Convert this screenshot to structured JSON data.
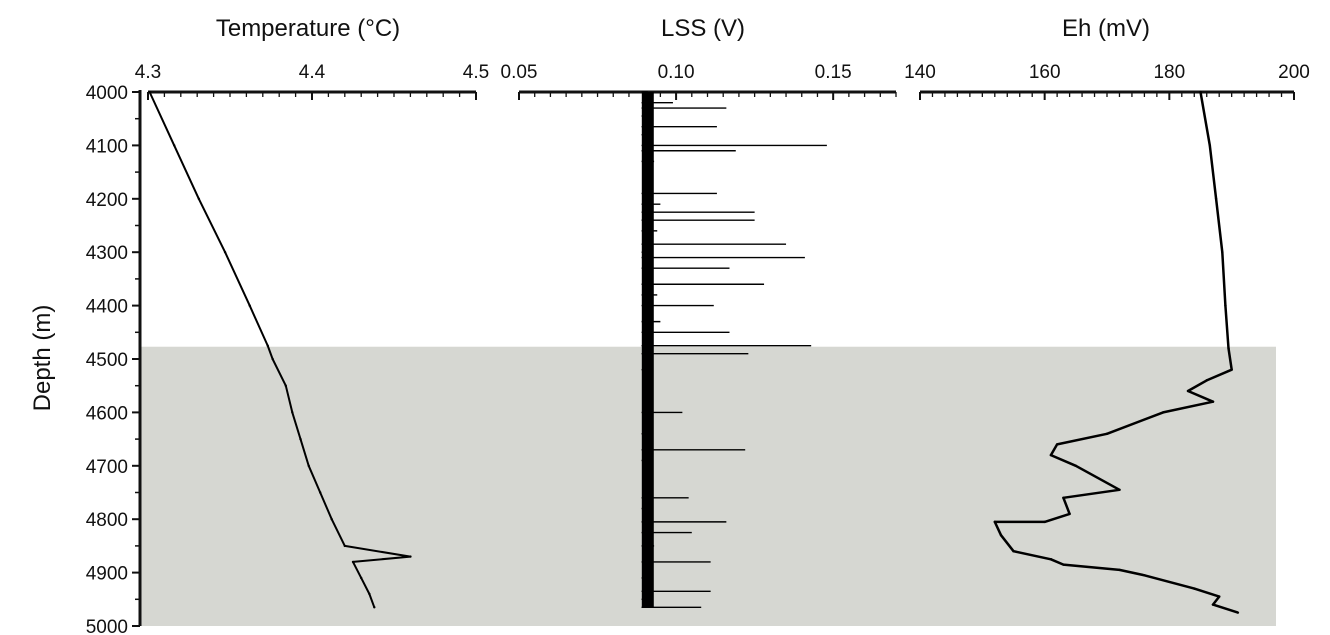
{
  "chart_data": {
    "type": "line",
    "shared_y": {
      "label": "Depth (m)",
      "ticks": [
        4000,
        4100,
        4200,
        4300,
        4400,
        4500,
        4600,
        4700,
        4800,
        4900,
        5000
      ],
      "range": [
        4000,
        5000
      ],
      "inverted": true
    },
    "shaded_region": {
      "from_depth": 4477,
      "to_depth": 5000,
      "color": "#d6d7d2"
    },
    "panels": [
      {
        "title": "Temperature (°C)",
        "xlim": [
          4.3,
          4.5
        ],
        "xticks": [
          "4.3",
          "4.4",
          "4.5"
        ],
        "series": [
          {
            "points": [
              [
                4.301,
                4000
              ],
              [
                4.316,
                4100
              ],
              [
                4.331,
                4200
              ],
              [
                4.347,
                4300
              ],
              [
                4.362,
                4400
              ],
              [
                4.373,
                4475
              ],
              [
                4.376,
                4500
              ],
              [
                4.384,
                4550
              ],
              [
                4.388,
                4600
              ],
              [
                4.393,
                4650
              ],
              [
                4.398,
                4700
              ],
              [
                4.405,
                4750
              ],
              [
                4.412,
                4800
              ],
              [
                4.42,
                4850
              ],
              [
                4.46,
                4870
              ],
              [
                4.425,
                4880
              ],
              [
                4.43,
                4910
              ],
              [
                4.435,
                4940
              ],
              [
                4.438,
                4965
              ]
            ]
          }
        ]
      },
      {
        "title": "LSS (V)",
        "xlim": [
          0.05,
          0.17
        ],
        "xticks": [
          "0.05",
          "0.10",
          "0.15"
        ],
        "series": [
          {
            "points": [
              [
                0.091,
                4000
              ],
              [
                0.099,
                4020
              ],
              [
                0.116,
                4030
              ],
              [
                0.092,
                4045
              ],
              [
                0.113,
                4065
              ],
              [
                0.091,
                4080
              ],
              [
                0.148,
                4100
              ],
              [
                0.119,
                4110
              ],
              [
                0.093,
                4130
              ],
              [
                0.113,
                4190
              ],
              [
                0.095,
                4210
              ],
              [
                0.125,
                4225
              ],
              [
                0.125,
                4240
              ],
              [
                0.094,
                4260
              ],
              [
                0.135,
                4285
              ],
              [
                0.092,
                4300
              ],
              [
                0.141,
                4310
              ],
              [
                0.117,
                4330
              ],
              [
                0.128,
                4360
              ],
              [
                0.094,
                4380
              ],
              [
                0.112,
                4400
              ],
              [
                0.095,
                4430
              ],
              [
                0.117,
                4450
              ],
              [
                0.143,
                4475
              ],
              [
                0.123,
                4490
              ],
              [
                0.091,
                4520
              ],
              [
                0.102,
                4600
              ],
              [
                0.092,
                4640
              ],
              [
                0.122,
                4670
              ],
              [
                0.091,
                4690
              ],
              [
                0.104,
                4760
              ],
              [
                0.092,
                4780
              ],
              [
                0.116,
                4805
              ],
              [
                0.105,
                4825
              ],
              [
                0.093,
                4850
              ],
              [
                0.111,
                4880
              ],
              [
                0.091,
                4910
              ],
              [
                0.111,
                4935
              ],
              [
                0.092,
                4950
              ],
              [
                0.108,
                4965
              ]
            ]
          }
        ]
      },
      {
        "title": "Eh (mV)",
        "xlim": [
          140,
          200
        ],
        "xticks": [
          "140",
          "160",
          "180",
          "200"
        ],
        "series": [
          {
            "points": [
              [
                185,
                4000
              ],
              [
                186.5,
                4100
              ],
              [
                187.5,
                4200
              ],
              [
                188.5,
                4300
              ],
              [
                189.0,
                4400
              ],
              [
                189.5,
                4480
              ],
              [
                190.0,
                4520
              ],
              [
                186.0,
                4540
              ],
              [
                183.0,
                4560
              ],
              [
                187.0,
                4580
              ],
              [
                179.0,
                4600
              ],
              [
                170.0,
                4640
              ],
              [
                162.0,
                4660
              ],
              [
                161.0,
                4680
              ],
              [
                165.0,
                4700
              ],
              [
                172.0,
                4745
              ],
              [
                163.0,
                4760
              ],
              [
                164.0,
                4790
              ],
              [
                160.0,
                4805
              ],
              [
                152.0,
                4805
              ],
              [
                153.0,
                4830
              ],
              [
                155.0,
                4860
              ],
              [
                161.0,
                4875
              ],
              [
                163.0,
                4885
              ],
              [
                172.0,
                4895
              ],
              [
                176.0,
                4905
              ],
              [
                184.0,
                4930
              ],
              [
                188.0,
                4945
              ],
              [
                187.0,
                4960
              ],
              [
                191.0,
                4975
              ]
            ]
          }
        ]
      }
    ]
  }
}
